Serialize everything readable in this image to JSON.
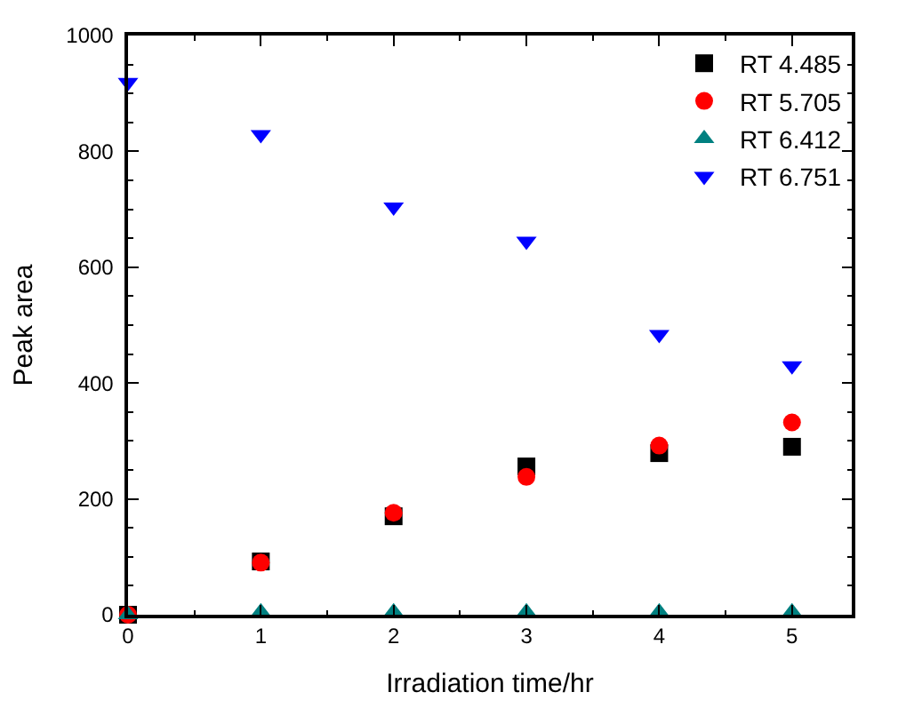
{
  "chart_data": {
    "type": "scatter",
    "xlabel": "Irradiation time/hr",
    "ylabel": "Peak area",
    "x": [
      0,
      1,
      2,
      3,
      4,
      5
    ],
    "xlim": [
      0,
      5.45
    ],
    "xticks": [
      0,
      1,
      2,
      3,
      4,
      5
    ],
    "ylim": [
      0,
      1000
    ],
    "yticks": [
      0,
      200,
      400,
      600,
      800,
      1000
    ],
    "legend": "top right",
    "series": [
      {
        "name": "RT 4.485",
        "color": "#000000",
        "marker": "square",
        "values": [
          0,
          92,
          170,
          256,
          279,
          290
        ]
      },
      {
        "name": "RT 5.705",
        "color": "#ff0000",
        "marker": "circle",
        "values": [
          0,
          90,
          176,
          238,
          292,
          332
        ]
      },
      {
        "name": "RT 6.412",
        "color": "#008080",
        "marker": "triangle",
        "values": [
          0,
          5,
          5,
          5,
          5,
          5
        ]
      },
      {
        "name": "RT 6.751",
        "color": "#0000ff",
        "marker": "triangle-down",
        "values": [
          919,
          829,
          704,
          645,
          484,
          430
        ]
      }
    ]
  }
}
